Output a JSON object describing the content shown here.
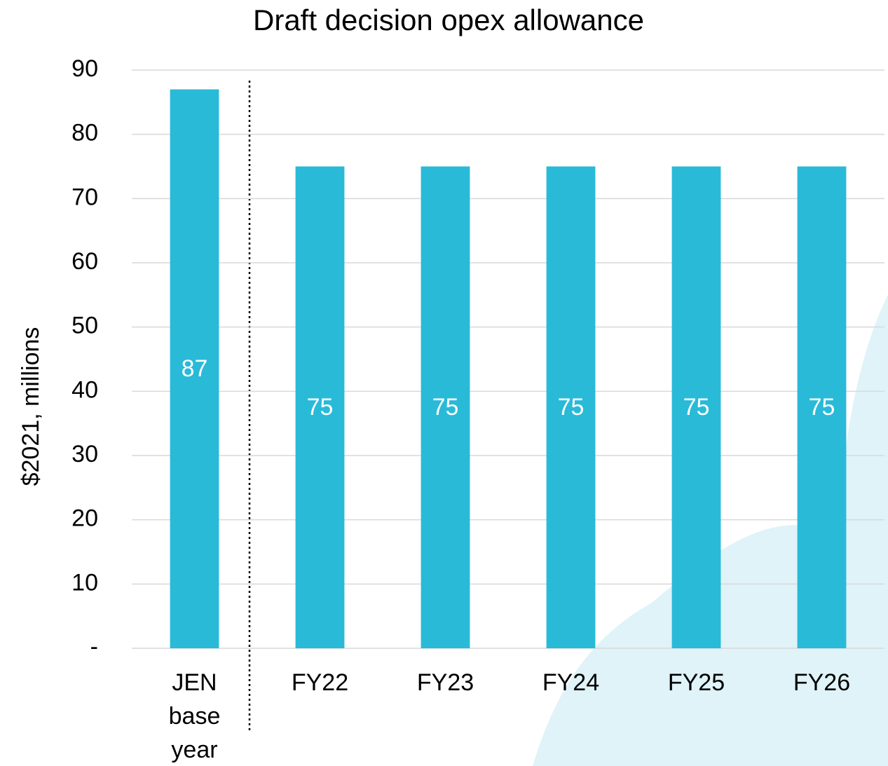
{
  "chart_data": {
    "type": "bar",
    "title": "Draft decision opex allowance",
    "y_label": "$2021, millions",
    "categories": [
      "JEN base year",
      "FY22",
      "FY23",
      "FY24",
      "FY25",
      "FY26"
    ],
    "values": [
      87,
      75,
      75,
      75,
      75,
      75
    ],
    "color": "#29bad8",
    "ylim": [
      0,
      90
    ],
    "yticks": [
      {
        "value": 0,
        "label": "-"
      },
      10,
      20,
      30,
      40,
      50,
      60,
      70,
      80,
      90
    ],
    "grid": true
  }
}
